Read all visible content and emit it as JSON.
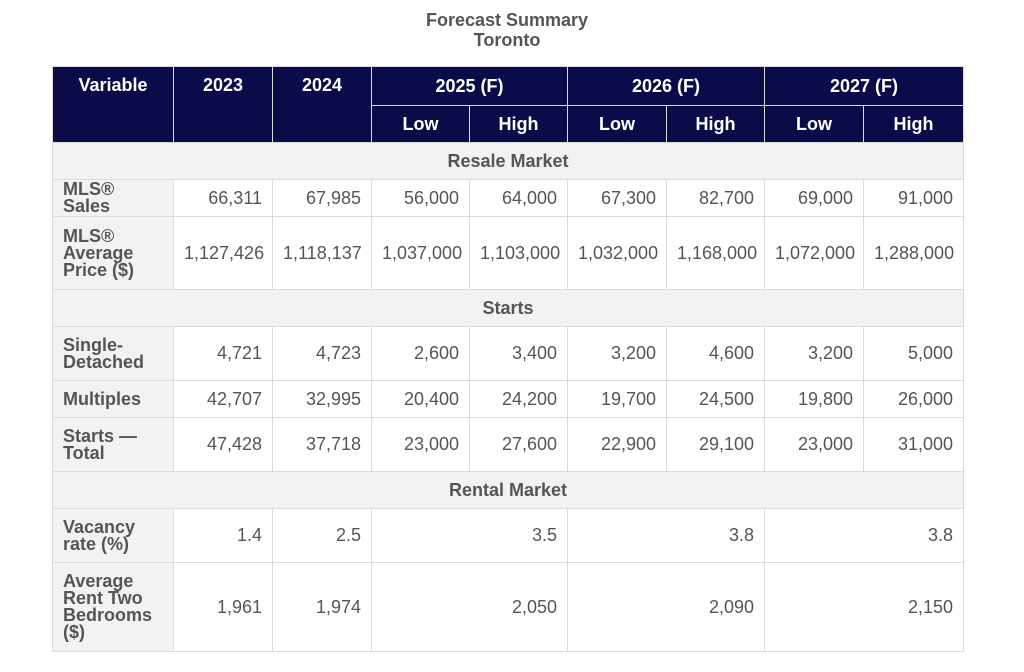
{
  "title": {
    "line1": "Forecast Summary",
    "line2": "Toronto"
  },
  "header": {
    "variable": "Variable",
    "y2023": "2023",
    "y2024": "2024",
    "y2025": "2025 (F)",
    "y2026": "2026 (F)",
    "y2027": "2027 (F)",
    "low": "Low",
    "high": "High"
  },
  "sections": {
    "resale": "Resale Market",
    "starts": "Starts",
    "rental": "Rental Market"
  },
  "rows": {
    "mls_sales": {
      "label": "MLS® Sales",
      "values": [
        "66,311",
        "67,985",
        "56,000",
        "64,000",
        "67,300",
        "82,700",
        "69,000",
        "91,000"
      ]
    },
    "mls_price": {
      "label": "MLS® Average Price ($)",
      "values": [
        "1,127,426",
        "1,118,137",
        "1,037,000",
        "1,103,000",
        "1,032,000",
        "1,168,000",
        "1,072,000",
        "1,288,000"
      ]
    },
    "single": {
      "label": "Single-Detached",
      "values": [
        "4,721",
        "4,723",
        "2,600",
        "3,400",
        "3,200",
        "4,600",
        "3,200",
        "5,000"
      ]
    },
    "multiples": {
      "label": "Multiples",
      "values": [
        "42,707",
        "32,995",
        "20,400",
        "24,200",
        "19,700",
        "24,500",
        "19,800",
        "26,000"
      ]
    },
    "starts_total": {
      "label": "Starts — Total",
      "values": [
        "47,428",
        "37,718",
        "23,000",
        "27,600",
        "22,900",
        "29,100",
        "23,000",
        "31,000"
      ]
    },
    "vacancy": {
      "label": "Vacancy rate (%)",
      "values": [
        "1.4",
        "2.5",
        "3.5",
        "3.8",
        "3.8"
      ]
    },
    "rent": {
      "label": "Average Rent Two Bedrooms ($)",
      "values": [
        "1,961",
        "1,974",
        "2,050",
        "2,090",
        "2,150"
      ]
    }
  },
  "colors": {
    "header_bg": "#0b0b4a",
    "label_bg": "#f2f2f2",
    "text": "#555555"
  }
}
